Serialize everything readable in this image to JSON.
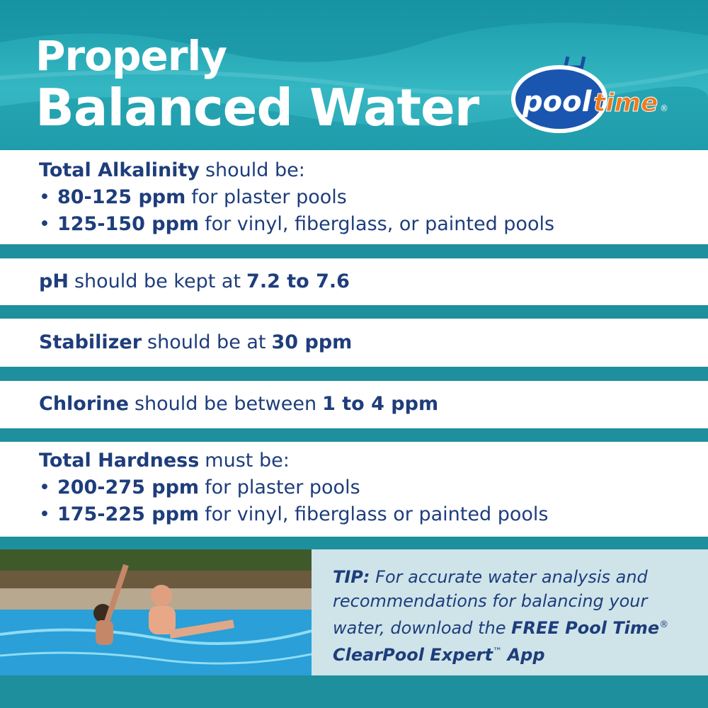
{
  "header": {
    "title_line1": "Properly",
    "title_line2": "Balanced Water",
    "logo": {
      "word1": "pool",
      "word2": "time",
      "mark": "®"
    }
  },
  "sections": [
    {
      "term": "Total Alkalinity",
      "text": "should be:",
      "bullets": [
        {
          "amount": "80-125 ppm",
          "text": "for plaster pools"
        },
        {
          "amount": "125-150 ppm",
          "text": "for vinyl, fiberglass, or painted pools"
        }
      ]
    },
    {
      "term": "pH",
      "text": "should be kept at",
      "value": "7.2 to 7.6"
    },
    {
      "term": "Stabilizer",
      "text": "should be at",
      "value": "30 ppm"
    },
    {
      "term": "Chlorine",
      "text": "should be between",
      "value": "1 to 4 ppm"
    },
    {
      "term": "Total Hardness",
      "text": "must be:",
      "bullets": [
        {
          "amount": "200-275 ppm",
          "text": "for plaster pools"
        },
        {
          "amount": "175-225 ppm",
          "text": "for vinyl, fiberglass or painted pools"
        }
      ]
    }
  ],
  "tip": {
    "label": "TIP:",
    "text": "For accurate water analysis and recommendations for balancing your water, download the",
    "brand": "FREE Pool Time",
    "reg": "®",
    "app": "ClearPool Expert",
    "tm": "™",
    "end": "App"
  }
}
